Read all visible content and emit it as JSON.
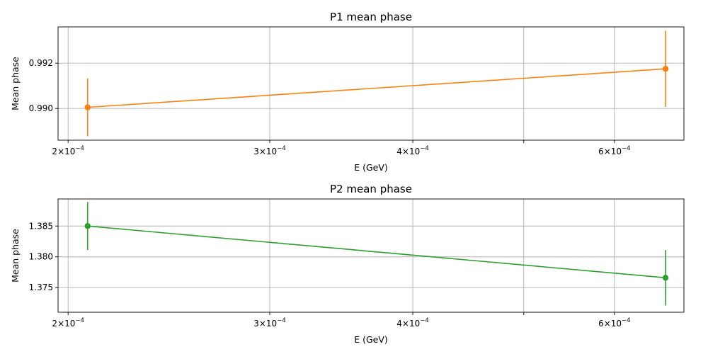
{
  "chart_data": [
    {
      "type": "line",
      "title": "P1 mean phase",
      "xlabel": "E (GeV)",
      "ylabel": "Mean phase",
      "x_scale": "log",
      "x_ticks": [
        {
          "value": 0.0002,
          "mantissa": "2",
          "exponent": "−4",
          "sep": "×",
          "base": "10"
        },
        {
          "value": 0.0003,
          "mantissa": "3",
          "exponent": "−4",
          "sep": "×",
          "base": "10"
        },
        {
          "value": 0.0004,
          "mantissa": "4",
          "exponent": "−4",
          "sep": "×",
          "base": "10"
        },
        {
          "value": 0.0005,
          "mantissa": "",
          "exponent": "",
          "sep": "",
          "base": ""
        },
        {
          "value": 0.0006,
          "mantissa": "6",
          "exponent": "−4",
          "sep": "×",
          "base": "10"
        }
      ],
      "xlim": [
        0.000196,
        0.00069
      ],
      "ylim": [
        0.9886,
        0.9936
      ],
      "y_ticks": [
        {
          "value": 0.99,
          "label": "0.990"
        },
        {
          "value": 0.992,
          "label": "0.992"
        }
      ],
      "grid": true,
      "color": "#ff7f0e",
      "series": [
        {
          "x": [
            0.000208,
            0.000665
          ],
          "y": [
            0.99005,
            0.99175
          ],
          "yerr": [
            0.00128,
            0.00168
          ]
        }
      ]
    },
    {
      "type": "line",
      "title": "P2 mean phase",
      "xlabel": "E (GeV)",
      "ylabel": "Mean phase",
      "x_scale": "log",
      "x_ticks": [
        {
          "value": 0.0002,
          "mantissa": "2",
          "exponent": "−4",
          "sep": "×",
          "base": "10"
        },
        {
          "value": 0.0003,
          "mantissa": "3",
          "exponent": "−4",
          "sep": "×",
          "base": "10"
        },
        {
          "value": 0.0004,
          "mantissa": "4",
          "exponent": "−4",
          "sep": "×",
          "base": "10"
        },
        {
          "value": 0.0005,
          "mantissa": "",
          "exponent": "",
          "sep": "",
          "base": ""
        },
        {
          "value": 0.0006,
          "mantissa": "6",
          "exponent": "−4",
          "sep": "×",
          "base": "10"
        }
      ],
      "xlim": [
        0.000196,
        0.00069
      ],
      "ylim": [
        1.371,
        1.3894
      ],
      "y_ticks": [
        {
          "value": 1.375,
          "label": "1.375"
        },
        {
          "value": 1.38,
          "label": "1.380"
        },
        {
          "value": 1.385,
          "label": "1.385"
        }
      ],
      "grid": true,
      "color": "#2ca02c",
      "series": [
        {
          "x": [
            0.000208,
            0.000665
          ],
          "y": [
            1.385,
            1.3766
          ],
          "yerr": [
            0.0039,
            0.0045
          ]
        }
      ]
    }
  ]
}
